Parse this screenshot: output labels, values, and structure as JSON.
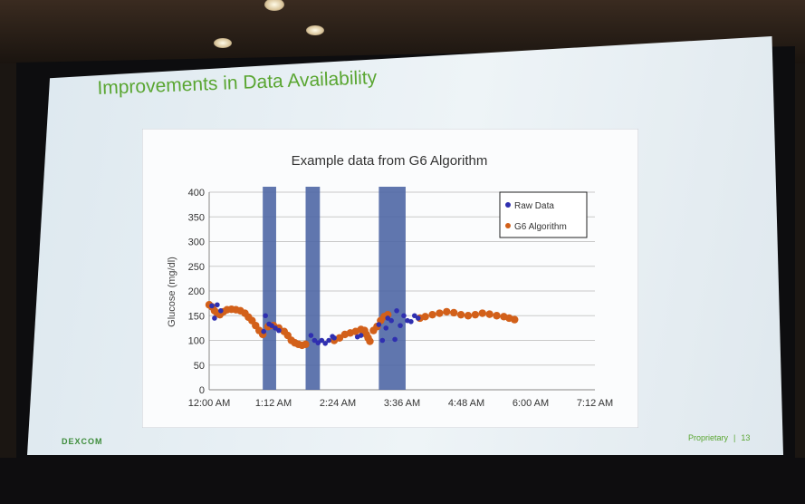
{
  "slide": {
    "title": "Improvements in Data Availability",
    "brand": "DEXCOM",
    "footer_label": "Proprietary",
    "footer_separator": "|",
    "page_number": "13"
  },
  "chart_data": {
    "type": "scatter",
    "title": "Example data from G6 Algorithm",
    "ylabel": "Glucose (mg/dl)",
    "xlabel": "",
    "x_ticks": [
      "12:00 AM",
      "1:12 AM",
      "2:24 AM",
      "3:36 AM",
      "4:48 AM",
      "6:00 AM",
      "7:12 AM"
    ],
    "y_ticks": [
      "0",
      "50",
      "100",
      "150",
      "200",
      "250",
      "300",
      "350",
      "400"
    ],
    "xlim_minutes": [
      0,
      432
    ],
    "ylim": [
      0,
      400
    ],
    "grid": true,
    "legend": "top-right",
    "shaded_regions_minutes": [
      [
        60,
        75
      ],
      [
        108,
        124
      ],
      [
        190,
        220
      ]
    ],
    "series": [
      {
        "name": "Raw Data",
        "color": "#2f2fb0",
        "points_minutes": [
          [
            3,
            170
          ],
          [
            6,
            145
          ],
          [
            9,
            172
          ],
          [
            13,
            160
          ],
          [
            61,
            118
          ],
          [
            63,
            150
          ],
          [
            67,
            133
          ],
          [
            70,
            130
          ],
          [
            74,
            125
          ],
          [
            78,
            120
          ],
          [
            114,
            110
          ],
          [
            118,
            100
          ],
          [
            122,
            95
          ],
          [
            126,
            100
          ],
          [
            130,
            94
          ],
          [
            134,
            100
          ],
          [
            138,
            108
          ],
          [
            140,
            105
          ],
          [
            166,
            107
          ],
          [
            170,
            110
          ],
          [
            190,
            132
          ],
          [
            194,
            100
          ],
          [
            198,
            125
          ],
          [
            200,
            145
          ],
          [
            204,
            140
          ],
          [
            208,
            102
          ],
          [
            210,
            160
          ],
          [
            214,
            130
          ],
          [
            218,
            150
          ],
          [
            222,
            140
          ],
          [
            226,
            138
          ],
          [
            230,
            150
          ],
          [
            234,
            145
          ]
        ]
      },
      {
        "name": "G6 Algorithm",
        "color": "#d2601a",
        "points_minutes": [
          [
            0,
            172
          ],
          [
            3,
            168
          ],
          [
            6,
            160
          ],
          [
            9,
            155
          ],
          [
            12,
            152
          ],
          [
            16,
            158
          ],
          [
            20,
            162
          ],
          [
            25,
            163
          ],
          [
            30,
            162
          ],
          [
            35,
            160
          ],
          [
            40,
            155
          ],
          [
            44,
            147
          ],
          [
            48,
            140
          ],
          [
            52,
            130
          ],
          [
            56,
            120
          ],
          [
            60,
            112
          ],
          [
            66,
            128
          ],
          [
            72,
            130
          ],
          [
            78,
            125
          ],
          [
            84,
            118
          ],
          [
            88,
            110
          ],
          [
            92,
            100
          ],
          [
            96,
            95
          ],
          [
            100,
            92
          ],
          [
            104,
            90
          ],
          [
            108,
            92
          ],
          [
            140,
            100
          ],
          [
            146,
            105
          ],
          [
            152,
            112
          ],
          [
            158,
            115
          ],
          [
            164,
            118
          ],
          [
            170,
            122
          ],
          [
            174,
            120
          ],
          [
            176,
            112
          ],
          [
            178,
            105
          ],
          [
            180,
            98
          ],
          [
            184,
            120
          ],
          [
            188,
            128
          ],
          [
            192,
            140
          ],
          [
            196,
            148
          ],
          [
            200,
            152
          ],
          [
            236,
            145
          ],
          [
            242,
            148
          ],
          [
            250,
            152
          ],
          [
            258,
            155
          ],
          [
            266,
            158
          ],
          [
            274,
            156
          ],
          [
            282,
            152
          ],
          [
            290,
            150
          ],
          [
            298,
            152
          ],
          [
            306,
            155
          ],
          [
            314,
            153
          ],
          [
            322,
            150
          ],
          [
            330,
            148
          ],
          [
            336,
            145
          ],
          [
            342,
            142
          ]
        ]
      }
    ]
  }
}
